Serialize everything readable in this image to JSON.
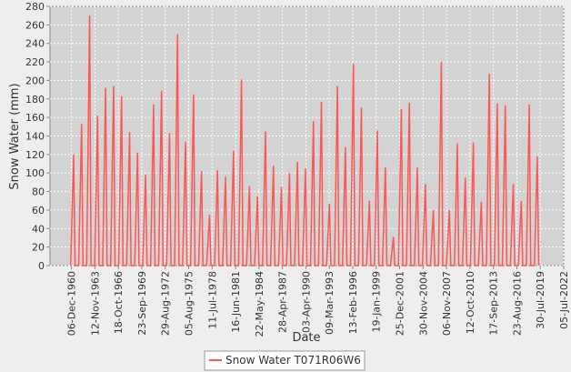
{
  "chart_data": {
    "type": "line",
    "y_label": "Snow Water (mm)",
    "x_label": "Date",
    "xlim": [
      "1958-04-01",
      "2022-07-05"
    ],
    "xticks": [
      {
        "value": "1960-12-06",
        "label": "06-Dec-1960"
      },
      {
        "value": "1963-11-12",
        "label": "12-Nov-1963"
      },
      {
        "value": "1966-10-18",
        "label": "18-Oct-1966"
      },
      {
        "value": "1969-09-23",
        "label": "23-Sep-1969"
      },
      {
        "value": "1972-08-29",
        "label": "29-Aug-1972"
      },
      {
        "value": "1975-08-05",
        "label": "05-Aug-1975"
      },
      {
        "value": "1978-07-11",
        "label": "11-Jul-1978"
      },
      {
        "value": "1981-06-16",
        "label": "16-Jun-1981"
      },
      {
        "value": "1984-05-22",
        "label": "22-May-1984"
      },
      {
        "value": "1987-04-28",
        "label": "28-Apr-1987"
      },
      {
        "value": "1990-04-03",
        "label": "03-Apr-1990"
      },
      {
        "value": "1993-03-09",
        "label": "09-Mar-1993"
      },
      {
        "value": "1996-02-13",
        "label": "13-Feb-1996"
      },
      {
        "value": "1999-01-19",
        "label": "19-Jan-1999"
      },
      {
        "value": "2001-12-25",
        "label": "25-Dec-2001"
      },
      {
        "value": "2004-11-30",
        "label": "30-Nov-2004"
      },
      {
        "value": "2007-11-06",
        "label": "06-Nov-2007"
      },
      {
        "value": "2010-10-12",
        "label": "12-Oct-2010"
      },
      {
        "value": "2013-09-17",
        "label": "17-Sep-2013"
      },
      {
        "value": "2016-08-23",
        "label": "23-Aug-2016"
      },
      {
        "value": "2019-07-30",
        "label": "30-Jul-2019"
      },
      {
        "value": "2022-07-05",
        "label": "05-Jul-2022"
      }
    ],
    "ylim": [
      0,
      280
    ],
    "yticks": [
      0,
      20,
      40,
      60,
      80,
      100,
      120,
      140,
      160,
      180,
      200,
      220,
      240,
      260,
      280
    ],
    "grid": true,
    "legend": "bottom",
    "x": [
      "1960-11-01",
      "1961-03-15",
      "1961-05-20",
      "1961-11-01",
      "1962-03-15",
      "1962-05-20",
      "1962-11-01",
      "1963-03-15",
      "1963-05-20",
      "1963-11-01",
      "1964-03-15",
      "1964-05-20",
      "1964-11-01",
      "1965-03-15",
      "1965-05-20",
      "1965-11-01",
      "1966-03-15",
      "1966-05-20",
      "1966-11-01",
      "1967-03-15",
      "1967-05-20",
      "1967-11-01",
      "1968-03-15",
      "1968-05-20",
      "1968-11-01",
      "1969-03-15",
      "1969-05-20",
      "1969-11-01",
      "1970-03-15",
      "1970-05-20",
      "1970-11-01",
      "1971-03-15",
      "1971-05-20",
      "1971-11-01",
      "1972-03-15",
      "1972-05-20",
      "1972-11-01",
      "1973-03-15",
      "1973-05-20",
      "1973-11-01",
      "1974-03-15",
      "1974-05-20",
      "1974-11-01",
      "1975-03-15",
      "1975-05-20",
      "1975-11-01",
      "1976-03-15",
      "1976-05-20",
      "1976-11-01",
      "1977-03-15",
      "1977-05-20",
      "1977-11-01",
      "1978-03-15",
      "1978-05-20",
      "1978-11-01",
      "1979-03-15",
      "1979-05-20",
      "1979-11-01",
      "1980-03-15",
      "1980-05-20",
      "1980-11-01",
      "1981-03-15",
      "1981-05-20",
      "1981-11-01",
      "1982-03-15",
      "1982-05-20",
      "1982-11-01",
      "1983-03-15",
      "1983-05-20",
      "1983-11-01",
      "1984-03-15",
      "1984-05-20",
      "1984-11-01",
      "1985-03-15",
      "1985-05-20",
      "1985-11-01",
      "1986-03-15",
      "1986-05-20",
      "1986-11-01",
      "1987-03-15",
      "1987-05-20",
      "1987-11-01",
      "1988-03-15",
      "1988-05-20",
      "1988-11-01",
      "1989-03-15",
      "1989-05-20",
      "1989-11-01",
      "1990-03-15",
      "1990-05-20",
      "1990-11-01",
      "1991-03-15",
      "1991-05-20",
      "1991-11-01",
      "1992-03-15",
      "1992-05-20",
      "1992-11-01",
      "1993-03-15",
      "1993-05-20",
      "1993-11-01",
      "1994-03-15",
      "1994-05-20",
      "1994-11-01",
      "1995-03-15",
      "1995-05-20",
      "1995-11-01",
      "1996-03-15",
      "1996-05-20",
      "1996-11-01",
      "1997-03-15",
      "1997-05-20",
      "1997-11-01",
      "1998-03-15",
      "1998-05-20",
      "1998-11-01",
      "1999-03-15",
      "1999-05-20",
      "1999-11-01",
      "2000-03-15",
      "2000-05-20",
      "2000-11-01",
      "2001-03-15",
      "2001-05-20",
      "2001-11-01",
      "2002-03-15",
      "2002-05-20",
      "2002-11-01",
      "2003-03-15",
      "2003-05-20",
      "2003-11-01",
      "2004-03-15",
      "2004-05-20",
      "2004-11-01",
      "2005-03-15",
      "2005-05-20",
      "2005-11-01",
      "2006-03-15",
      "2006-05-20",
      "2006-11-01",
      "2007-03-15",
      "2007-05-20",
      "2007-11-01",
      "2008-03-15",
      "2008-05-20",
      "2008-11-01",
      "2009-03-15",
      "2009-05-20",
      "2009-11-01",
      "2010-03-15",
      "2010-05-20",
      "2010-11-01",
      "2011-03-15",
      "2011-05-20",
      "2011-11-01",
      "2012-03-15",
      "2012-05-20",
      "2012-11-01",
      "2013-03-15",
      "2013-05-20",
      "2013-11-01",
      "2014-03-15",
      "2014-05-20",
      "2014-11-01",
      "2015-03-15",
      "2015-05-20",
      "2015-11-01",
      "2016-03-15",
      "2016-05-20",
      "2016-11-01",
      "2017-03-15",
      "2017-05-20",
      "2017-11-01",
      "2018-03-15",
      "2018-05-20",
      "2018-11-01",
      "2019-03-15",
      "2019-05-20"
    ],
    "series": [
      {
        "name": "Snow Water T071R06W6",
        "color": "#ff5555",
        "values": [
          0,
          120,
          0,
          0,
          153,
          0,
          0,
          270,
          0,
          0,
          162,
          0,
          0,
          192,
          0,
          0,
          194,
          0,
          0,
          183,
          0,
          0,
          144,
          0,
          0,
          122,
          0,
          0,
          98,
          0,
          0,
          174,
          0,
          0,
          189,
          0,
          0,
          143,
          0,
          0,
          250,
          0,
          0,
          134,
          0,
          0,
          185,
          0,
          0,
          102,
          0,
          0,
          55,
          0,
          0,
          103,
          0,
          0,
          96,
          0,
          0,
          124,
          0,
          0,
          201,
          0,
          0,
          86,
          0,
          0,
          75,
          0,
          0,
          145,
          0,
          0,
          108,
          0,
          0,
          85,
          0,
          0,
          100,
          0,
          0,
          112,
          0,
          0,
          105,
          0,
          0,
          156,
          0,
          0,
          177,
          0,
          0,
          67,
          0,
          0,
          194,
          0,
          0,
          128,
          0,
          0,
          218,
          0,
          0,
          171,
          0,
          0,
          70,
          0,
          0,
          146,
          0,
          0,
          106,
          0,
          0,
          31,
          0,
          0,
          169,
          0,
          0,
          176,
          0,
          0,
          106,
          0,
          0,
          88,
          0,
          0,
          60,
          0,
          0,
          220,
          0,
          0,
          60,
          0,
          0,
          132,
          0,
          0,
          95,
          0,
          0,
          133,
          0,
          0,
          69,
          0,
          0,
          207,
          0,
          0,
          175,
          0,
          0,
          173,
          0,
          0,
          88,
          0,
          0,
          70,
          0,
          0,
          174,
          0,
          0,
          118,
          0
        ]
      }
    ]
  }
}
